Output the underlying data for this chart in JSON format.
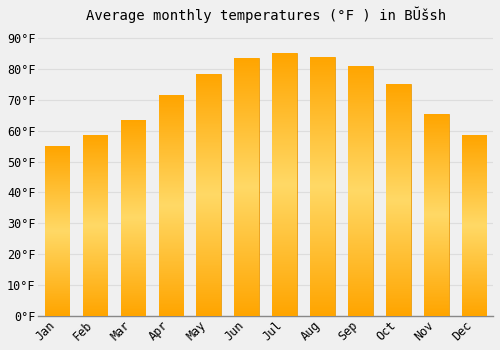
{
  "title": "Average monthly temperatures (°F ) in BŬšsh",
  "months": [
    "Jan",
    "Feb",
    "Mar",
    "Apr",
    "May",
    "Jun",
    "Jul",
    "Aug",
    "Sep",
    "Oct",
    "Nov",
    "Dec"
  ],
  "values": [
    55,
    58.5,
    63.5,
    71.5,
    78.5,
    83.5,
    85,
    84,
    81,
    75,
    65.5,
    58.5
  ],
  "bar_color_top": "#FFD966",
  "bar_color_bottom": "#FFA500",
  "bar_edge_color": "#E69500",
  "background_color": "#F0F0F0",
  "yticks": [
    0,
    10,
    20,
    30,
    40,
    50,
    60,
    70,
    80,
    90
  ],
  "ylim": [
    0,
    93
  ],
  "grid_color": "#DDDDDD",
  "title_fontsize": 10,
  "tick_fontsize": 8.5
}
